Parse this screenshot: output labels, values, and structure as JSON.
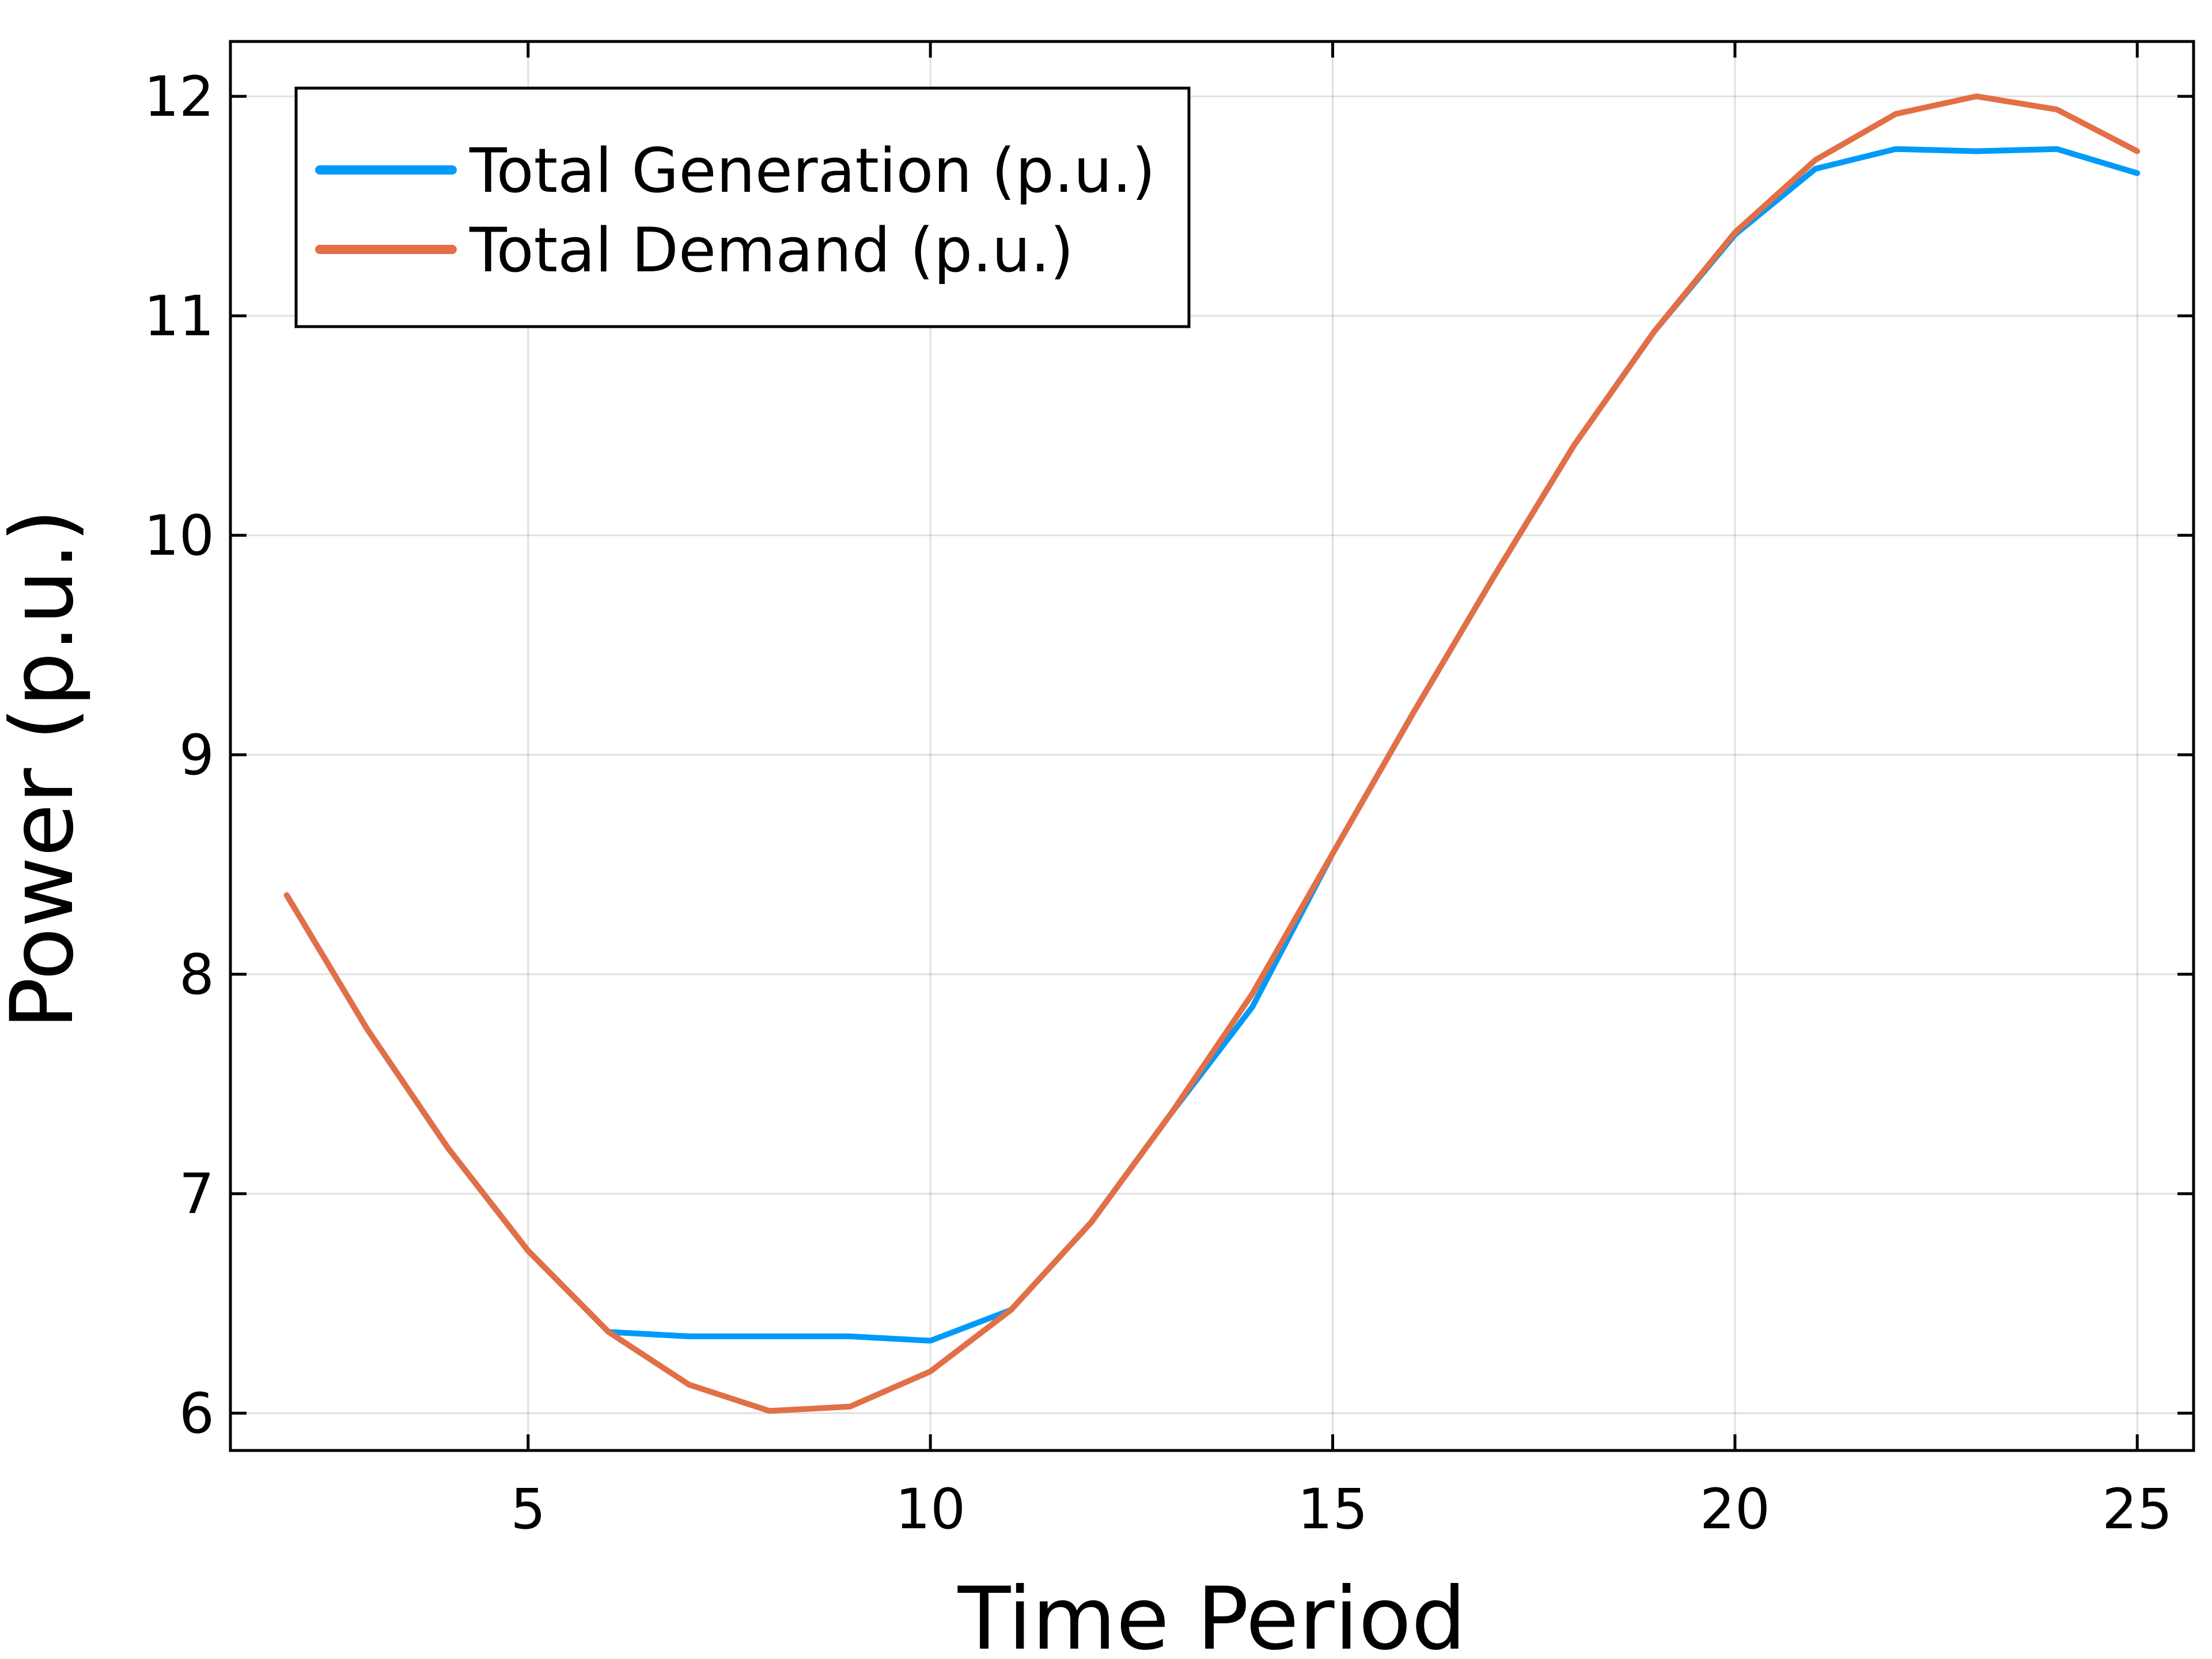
{
  "chart_data": {
    "type": "line",
    "title": "",
    "xlabel": "Time Period",
    "ylabel": "Power (p.u.)",
    "xlim": [
      1.3,
      25.7
    ],
    "ylim": [
      5.83,
      12.25
    ],
    "xticks": [
      5,
      10,
      15,
      20,
      25
    ],
    "yticks": [
      6,
      7,
      8,
      9,
      10,
      11,
      12
    ],
    "grid": true,
    "legend_position": "top-left",
    "x": [
      2,
      3,
      4,
      5,
      6,
      7,
      8,
      9,
      10,
      11,
      12,
      13,
      14,
      15,
      16,
      17,
      18,
      19,
      20,
      21,
      22,
      23,
      24,
      25
    ],
    "series": [
      {
        "name": "Total Generation (p.u.)",
        "color": "#009af9",
        "values": [
          8.36,
          7.75,
          7.21,
          6.74,
          6.37,
          6.35,
          6.35,
          6.35,
          6.33,
          6.47,
          6.87,
          7.37,
          7.85,
          8.55,
          9.19,
          9.81,
          10.41,
          10.93,
          11.37,
          11.67,
          11.76,
          11.75,
          11.76,
          11.65
        ]
      },
      {
        "name": "Total Demand (p.u.)",
        "color": "#e26f46",
        "values": [
          8.36,
          7.75,
          7.21,
          6.74,
          6.37,
          6.13,
          6.01,
          6.03,
          6.19,
          6.47,
          6.87,
          7.37,
          7.91,
          8.55,
          9.19,
          9.81,
          10.41,
          10.93,
          11.38,
          11.71,
          11.92,
          12.0,
          11.94,
          11.75
        ]
      }
    ]
  }
}
